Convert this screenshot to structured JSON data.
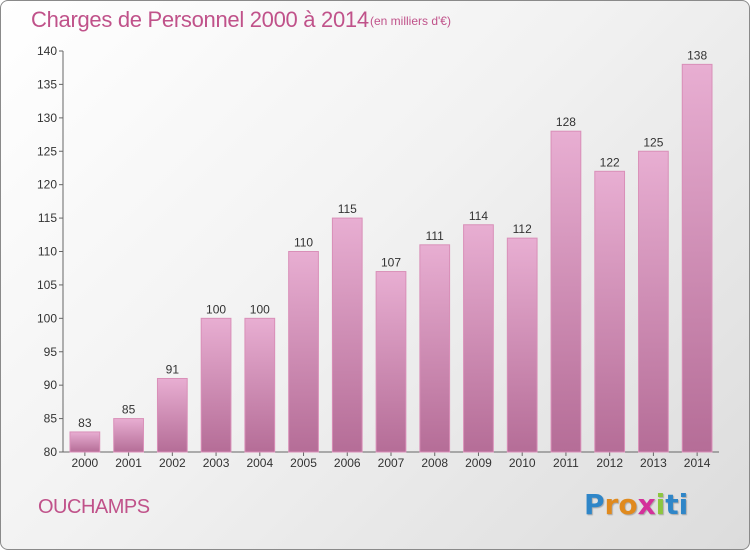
{
  "header": {
    "title": "Charges de Personnel 2000 à 2014",
    "subtitle": "(en milliers d'€)"
  },
  "footer": {
    "commune": "OUCHAMPS",
    "logo_letters": [
      "P",
      "r",
      "o",
      "x",
      "i",
      "ti"
    ]
  },
  "chart_data": {
    "type": "bar",
    "title": "Charges de Personnel 2000 à 2014",
    "subtitle": "(en milliers d'€)",
    "xlabel": "",
    "ylabel": "",
    "categories": [
      "2000",
      "2001",
      "2002",
      "2003",
      "2004",
      "2005",
      "2006",
      "2007",
      "2008",
      "2009",
      "2010",
      "2011",
      "2012",
      "2013",
      "2014"
    ],
    "values": [
      83,
      85,
      91,
      100,
      100,
      110,
      115,
      107,
      111,
      114,
      112,
      128,
      122,
      125,
      138
    ],
    "ylim": [
      80,
      140
    ],
    "yticks": [
      80,
      85,
      90,
      95,
      100,
      105,
      110,
      115,
      120,
      125,
      130,
      135,
      140
    ],
    "grid": false,
    "legend": "none",
    "colors": {
      "bar_top": "#e8aed2",
      "bar_bottom": "#b56d97",
      "bar_edge": "#d98fb8",
      "accent": "#c0528a"
    }
  }
}
